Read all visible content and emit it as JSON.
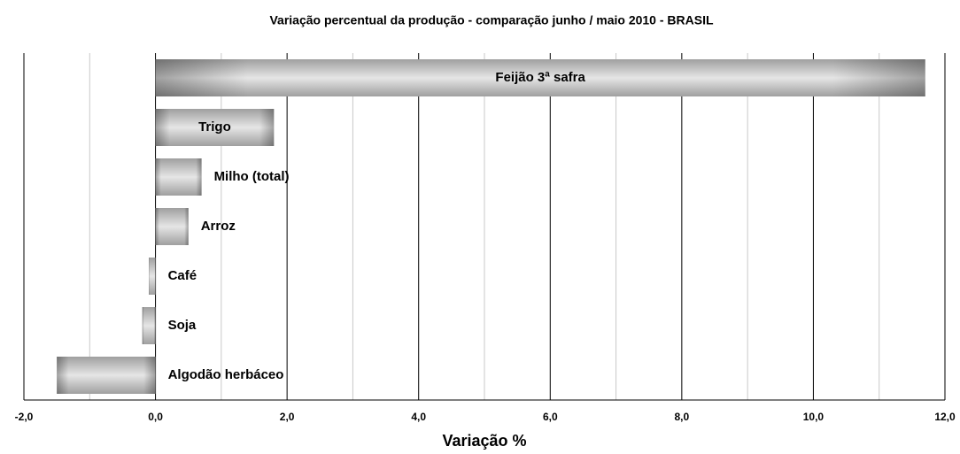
{
  "chart_data": {
    "type": "barh",
    "title": "Variação percentual da produção - comparação junho / maio 2010 - BRASIL",
    "x_label": "Variação %",
    "categories": [
      "Feijão 3ª safra",
      "Trigo",
      "Milho (total)",
      "Arroz",
      "Café",
      "Soja",
      "Algodão herbáceo"
    ],
    "values": [
      11.7,
      1.8,
      0.7,
      0.5,
      -0.1,
      -0.2,
      -1.5
    ],
    "color": "#b4b4b4",
    "xlim": [
      -2,
      12
    ],
    "xticks": [
      {
        "value": -2,
        "label": "-2,0"
      },
      {
        "value": 0,
        "label": "0,0"
      },
      {
        "value": 2,
        "label": "2,0"
      },
      {
        "value": 4,
        "label": "4,0"
      },
      {
        "value": 6,
        "label": "6,0"
      },
      {
        "value": 8,
        "label": "8,0"
      },
      {
        "value": 10,
        "label": "10,0"
      },
      {
        "value": 12,
        "label": "12,0"
      }
    ],
    "minor_xticks": [
      -1,
      1,
      3,
      5,
      7,
      9,
      11
    ],
    "grid": true
  }
}
